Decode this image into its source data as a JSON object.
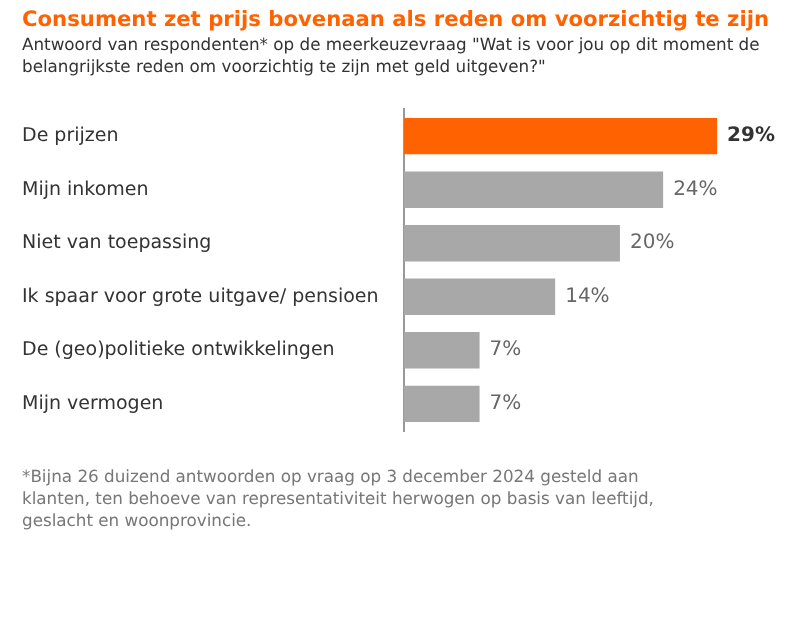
{
  "chart_data": {
    "type": "bar",
    "orientation": "horizontal",
    "title": "Consument zet prijs bovenaan als reden om voorzichtig te zijn",
    "subtitle": "Antwoord van respondenten* op de meerkeuzevraag \"Wat is voor jou op dit moment de belangrijkste reden om voorzichtig te zijn met geld uitgeven?\"",
    "categories": [
      "De prijzen",
      "Mijn inkomen",
      "Niet van toepassing",
      "Ik spaar voor grote uitgave/ pensioen",
      "De (geo)politieke ontwikkelingen",
      "Mijn vermogen"
    ],
    "values": [
      29,
      24,
      20,
      14,
      7,
      7
    ],
    "colors": [
      "#ff6200",
      "#a8a8a8",
      "#a8a8a8",
      "#a8a8a8",
      "#a8a8a8",
      "#a8a8a8"
    ],
    "value_labels": [
      "29%",
      "24%",
      "20%",
      "14%",
      "7%",
      "7%"
    ],
    "legend": false,
    "tick_labels": "y",
    "annotations": [
      "*Bijna 26 duizend antwoorden op vraag op 3 december 2024 gesteld aan klanten, ten behoeve van representativiteit herwogen op basis van leeftijd, geslacht en woonprovincie."
    ]
  }
}
